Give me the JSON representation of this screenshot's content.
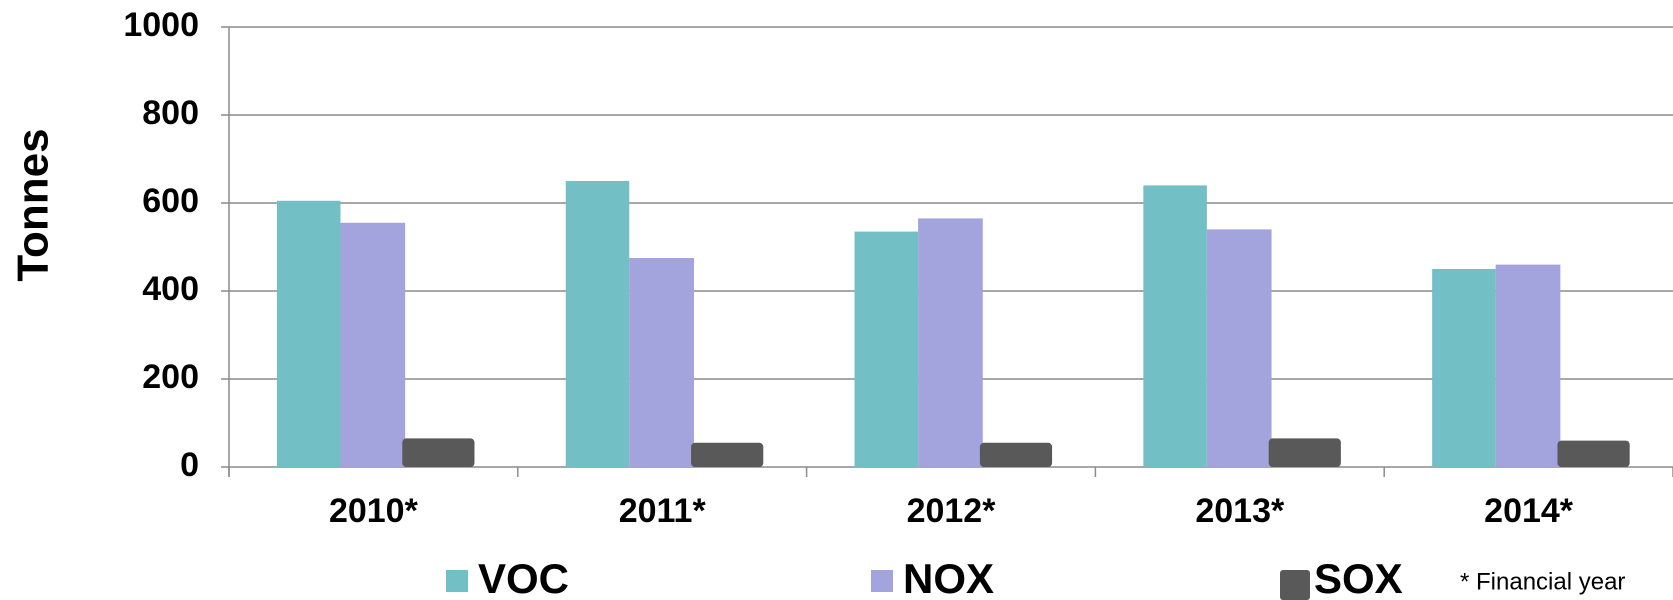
{
  "chart_data": {
    "type": "bar",
    "y_label": "Tonnes",
    "note": "* Financial   year",
    "categories": [
      "2010*",
      "2011*",
      "2012*",
      "2013*",
      "2014*"
    ],
    "series": [
      {
        "name": "VOC",
        "color": "#72bfc5",
        "values": [
          605,
          650,
          535,
          640,
          450
        ]
      },
      {
        "name": "NOX",
        "color": "#a3a3de",
        "values": [
          555,
          475,
          565,
          540,
          460
        ]
      },
      {
        "name": "SOX",
        "color": "#595959",
        "values": [
          65,
          55,
          55,
          65,
          60
        ]
      }
    ],
    "ylim": [
      0,
      1000
    ],
    "yticks": [
      0,
      200,
      400,
      600,
      800,
      1000
    ],
    "grid": true
  }
}
